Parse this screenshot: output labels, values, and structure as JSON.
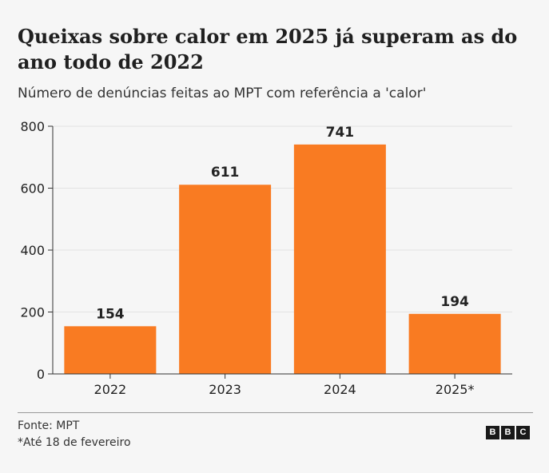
{
  "title": "Queixas sobre calor em 2025 já superam as do ano todo de 2022",
  "subtitle": "Número de denúncias feitas ao MPT com referência a 'calor'",
  "source": "Fonte: MPT",
  "note": "*Até 18 de fevereiro",
  "logo": [
    "B",
    "B",
    "C"
  ],
  "chart_data": {
    "type": "bar",
    "categories": [
      "2022",
      "2023",
      "2024",
      "2025*"
    ],
    "values": [
      154,
      611,
      741,
      194
    ],
    "ylim": [
      0,
      800
    ],
    "yticks": [
      0,
      200,
      400,
      600,
      800
    ],
    "bar_color": "#f97b22",
    "grid": true,
    "data_labels": true
  }
}
